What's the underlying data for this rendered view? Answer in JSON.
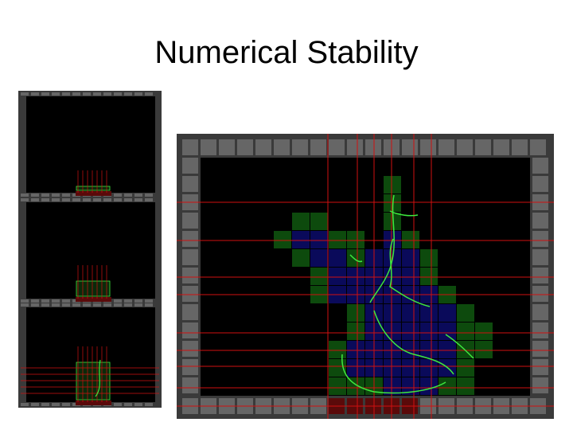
{
  "title": "Numerical Stability"
}
